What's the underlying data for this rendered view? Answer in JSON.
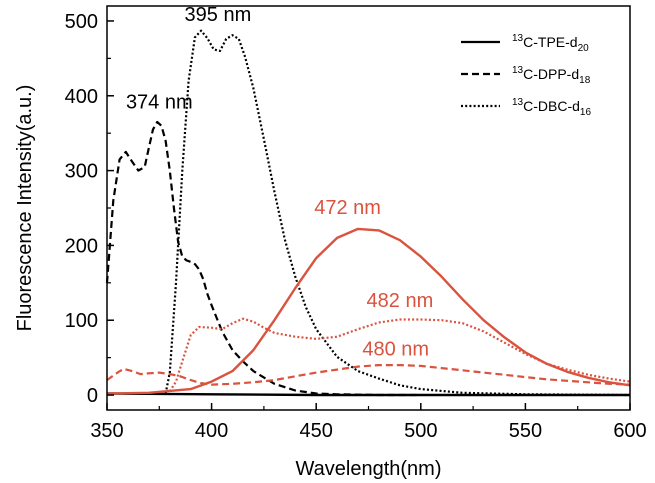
{
  "chart_data": {
    "type": "line",
    "xlabel": "Wavelength(nm)",
    "ylabel": "Fluorescence Intensity(a.u.)",
    "xlim": [
      350,
      600
    ],
    "ylim": [
      -20,
      520
    ],
    "xticks": [
      350,
      400,
      450,
      500,
      550,
      600
    ],
    "yticks": [
      0,
      100,
      200,
      300,
      400,
      500
    ],
    "legend_position": "top-right",
    "colors": {
      "black": "#000000",
      "red": "#d9533f"
    },
    "legend": [
      {
        "prefix": "13",
        "name": "C-TPE-d",
        "sub": "20",
        "dash": "solid"
      },
      {
        "prefix": "13",
        "name": "C-DPP-d",
        "sub": "18",
        "dash": "dashed"
      },
      {
        "prefix": "13",
        "name": "C-DBC-d",
        "sub": "16",
        "dash": "dotted"
      }
    ],
    "series": [
      {
        "id": "tpe-black",
        "color": "black",
        "dash": "solid",
        "points": [
          [
            350,
            2
          ],
          [
            400,
            1
          ],
          [
            450,
            0
          ],
          [
            500,
            0
          ],
          [
            550,
            0
          ],
          [
            600,
            0
          ]
        ]
      },
      {
        "id": "dpp-black",
        "color": "black",
        "dash": "dashed",
        "points": [
          [
            350,
            150
          ],
          [
            353,
            260
          ],
          [
            356,
            315
          ],
          [
            359,
            325
          ],
          [
            362,
            312
          ],
          [
            365,
            300
          ],
          [
            368,
            305
          ],
          [
            370,
            330
          ],
          [
            372,
            355
          ],
          [
            374,
            365
          ],
          [
            376,
            360
          ],
          [
            378,
            340
          ],
          [
            380,
            300
          ],
          [
            382,
            250
          ],
          [
            384,
            205
          ],
          [
            386,
            185
          ],
          [
            388,
            180
          ],
          [
            390,
            178
          ],
          [
            392,
            175
          ],
          [
            394,
            168
          ],
          [
            396,
            155
          ],
          [
            398,
            135
          ],
          [
            400,
            120
          ],
          [
            405,
            85
          ],
          [
            410,
            60
          ],
          [
            415,
            45
          ],
          [
            420,
            32
          ],
          [
            430,
            15
          ],
          [
            440,
            6
          ],
          [
            450,
            2
          ],
          [
            460,
            1
          ],
          [
            480,
            0
          ],
          [
            500,
            0
          ]
        ]
      },
      {
        "id": "dbc-black",
        "color": "black",
        "dash": "dotted",
        "points": [
          [
            378,
            2
          ],
          [
            380,
            30
          ],
          [
            383,
            150
          ],
          [
            386,
            300
          ],
          [
            389,
            420
          ],
          [
            392,
            478
          ],
          [
            395,
            487
          ],
          [
            398,
            477
          ],
          [
            401,
            462
          ],
          [
            404,
            460
          ],
          [
            407,
            476
          ],
          [
            410,
            481
          ],
          [
            413,
            476
          ],
          [
            416,
            452
          ],
          [
            420,
            410
          ],
          [
            425,
            342
          ],
          [
            430,
            272
          ],
          [
            435,
            208
          ],
          [
            440,
            158
          ],
          [
            445,
            118
          ],
          [
            450,
            88
          ],
          [
            460,
            51
          ],
          [
            470,
            32
          ],
          [
            480,
            22
          ],
          [
            490,
            13
          ],
          [
            500,
            8
          ],
          [
            520,
            3
          ],
          [
            550,
            1
          ],
          [
            600,
            0
          ]
        ]
      },
      {
        "id": "tpe-red",
        "color": "red",
        "dash": "solid",
        "points": [
          [
            350,
            2
          ],
          [
            370,
            3
          ],
          [
            390,
            8
          ],
          [
            400,
            18
          ],
          [
            410,
            32
          ],
          [
            420,
            60
          ],
          [
            430,
            100
          ],
          [
            440,
            143
          ],
          [
            450,
            183
          ],
          [
            460,
            210
          ],
          [
            470,
            222
          ],
          [
            480,
            220
          ],
          [
            490,
            207
          ],
          [
            500,
            185
          ],
          [
            510,
            158
          ],
          [
            520,
            128
          ],
          [
            530,
            100
          ],
          [
            540,
            77
          ],
          [
            550,
            57
          ],
          [
            560,
            42
          ],
          [
            570,
            31
          ],
          [
            580,
            23
          ],
          [
            590,
            17
          ],
          [
            600,
            13
          ]
        ]
      },
      {
        "id": "dpp-red",
        "color": "red",
        "dash": "dashed",
        "points": [
          [
            350,
            20
          ],
          [
            355,
            30
          ],
          [
            358,
            35
          ],
          [
            362,
            32
          ],
          [
            366,
            28
          ],
          [
            370,
            29
          ],
          [
            375,
            30
          ],
          [
            380,
            28
          ],
          [
            385,
            25
          ],
          [
            390,
            20
          ],
          [
            395,
            16
          ],
          [
            400,
            14
          ],
          [
            410,
            15
          ],
          [
            420,
            17
          ],
          [
            430,
            20
          ],
          [
            440,
            25
          ],
          [
            450,
            30
          ],
          [
            460,
            34
          ],
          [
            470,
            38
          ],
          [
            480,
            40
          ],
          [
            490,
            40
          ],
          [
            500,
            39
          ],
          [
            510,
            36
          ],
          [
            520,
            33
          ],
          [
            530,
            30
          ],
          [
            540,
            27
          ],
          [
            550,
            24
          ],
          [
            560,
            21
          ],
          [
            570,
            19
          ],
          [
            580,
            17
          ],
          [
            590,
            15
          ],
          [
            600,
            14
          ]
        ]
      },
      {
        "id": "dbc-red",
        "color": "red",
        "dash": "dotted",
        "points": [
          [
            380,
            5
          ],
          [
            383,
            18
          ],
          [
            386,
            45
          ],
          [
            390,
            80
          ],
          [
            394,
            91
          ],
          [
            400,
            90
          ],
          [
            405,
            88
          ],
          [
            410,
            96
          ],
          [
            415,
            102
          ],
          [
            420,
            98
          ],
          [
            425,
            90
          ],
          [
            430,
            83
          ],
          [
            440,
            78
          ],
          [
            450,
            75
          ],
          [
            460,
            78
          ],
          [
            470,
            88
          ],
          [
            480,
            97
          ],
          [
            490,
            101
          ],
          [
            500,
            101
          ],
          [
            510,
            100
          ],
          [
            520,
            96
          ],
          [
            530,
            85
          ],
          [
            540,
            70
          ],
          [
            550,
            55
          ],
          [
            560,
            42
          ],
          [
            570,
            34
          ],
          [
            580,
            27
          ],
          [
            590,
            22
          ],
          [
            600,
            18
          ]
        ]
      }
    ],
    "annotations": [
      {
        "text": "374 nm",
        "color": "black",
        "x": 375,
        "y": 383
      },
      {
        "text": "395 nm",
        "color": "black",
        "x": 403,
        "y": 500
      },
      {
        "text": "472 nm",
        "color": "red",
        "x": 465,
        "y": 242
      },
      {
        "text": "482 nm",
        "color": "red",
        "x": 490,
        "y": 118
      },
      {
        "text": "480 nm",
        "color": "red",
        "x": 488,
        "y": 53
      }
    ]
  }
}
